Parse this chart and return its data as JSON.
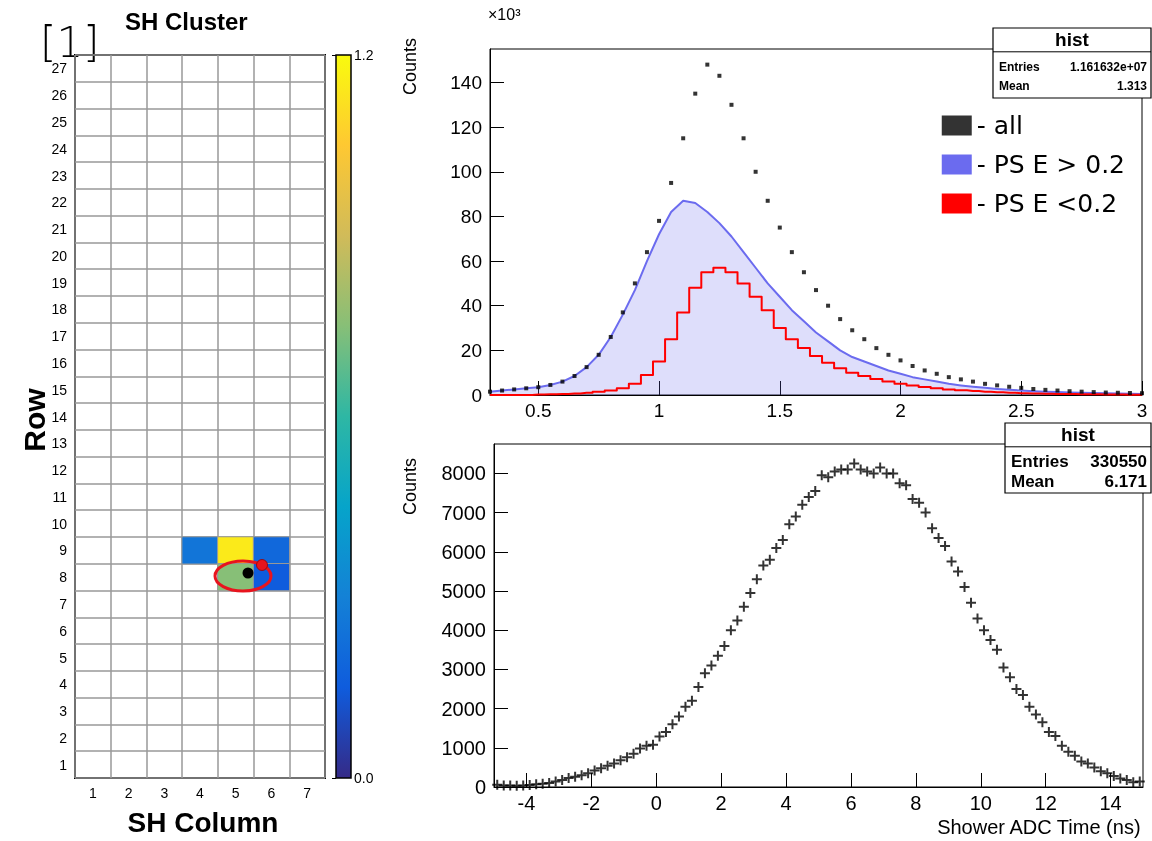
{
  "chart_data": [
    {
      "type": "heatmap",
      "title": "SH Cluster",
      "xlabel": "SH Column",
      "ylabel": "Row",
      "categories": [
        "1",
        "2",
        "3",
        "4",
        "5",
        "6",
        "7"
      ],
      "y_categories": [
        "27",
        "26",
        "25",
        "24",
        "23",
        "22",
        "21",
        "20",
        "19",
        "18",
        "17",
        "16",
        "15",
        "14",
        "13",
        "12",
        "11",
        "10",
        "9",
        "8",
        "7",
        "6",
        "5",
        "4",
        "3",
        "2",
        "1"
      ],
      "cells": [
        [
          null,
          null,
          null,
          null,
          null,
          null,
          null
        ],
        [
          null,
          null,
          null,
          null,
          null,
          null,
          null
        ],
        [
          null,
          null,
          null,
          null,
          null,
          null,
          null
        ],
        [
          null,
          null,
          null,
          null,
          null,
          null,
          null
        ],
        [
          null,
          null,
          null,
          null,
          null,
          null,
          null
        ],
        [
          null,
          null,
          null,
          null,
          null,
          null,
          null
        ],
        [
          null,
          null,
          null,
          null,
          null,
          null,
          null
        ],
        [
          null,
          null,
          null,
          null,
          null,
          null,
          null
        ],
        [
          null,
          null,
          null,
          null,
          null,
          null,
          null
        ],
        [
          null,
          null,
          null,
          null,
          null,
          null,
          null
        ],
        [
          null,
          null,
          null,
          null,
          null,
          null,
          null
        ],
        [
          null,
          null,
          null,
          null,
          null,
          null,
          null
        ],
        [
          null,
          null,
          null,
          null,
          null,
          null,
          null
        ],
        [
          null,
          null,
          null,
          null,
          null,
          null,
          null
        ],
        [
          null,
          null,
          null,
          null,
          null,
          null,
          null
        ],
        [
          null,
          null,
          null,
          null,
          null,
          null,
          null
        ],
        [
          null,
          null,
          null,
          null,
          null,
          null,
          null
        ],
        [
          null,
          null,
          null,
          null,
          null,
          null,
          null
        ],
        [
          null,
          null,
          null,
          0.25,
          1.15,
          0.2,
          null
        ],
        [
          null,
          null,
          null,
          null,
          0.75,
          0.15,
          null
        ],
        [
          null,
          null,
          null,
          null,
          null,
          null,
          null
        ],
        [
          null,
          null,
          null,
          null,
          null,
          null,
          null
        ],
        [
          null,
          null,
          null,
          null,
          null,
          null,
          null
        ],
        [
          null,
          null,
          null,
          null,
          null,
          null,
          null
        ],
        [
          null,
          null,
          null,
          null,
          null,
          null,
          null
        ],
        [
          null,
          null,
          null,
          null,
          null,
          null,
          null
        ],
        [
          null,
          null,
          null,
          null,
          null,
          null,
          null
        ]
      ],
      "clim": [
        0,
        1.2
      ],
      "cticks": [
        {
          "value": 0,
          "label": "0.0"
        },
        {
          "value": 1.2,
          "label": "1.2"
        }
      ],
      "grid": true,
      "annotations": [
        "[1]"
      ]
    },
    {
      "type": "step",
      "ylabel": "Counts",
      "legend": "top right",
      "xlim": [
        0.3,
        3
      ],
      "xticks": [
        0.5,
        1,
        1.5,
        2,
        2.5,
        3
      ],
      "ylim": [
        0,
        155
      ],
      "yticks": [
        0,
        20,
        40,
        60,
        80,
        100,
        120,
        140
      ],
      "annotations": [
        "×10³",
        "hist",
        "Entries",
        "1.161632e+07",
        "Mean",
        "1.313"
      ],
      "x": [
        0.3,
        0.35,
        0.4,
        0.45,
        0.5,
        0.55,
        0.6,
        0.65,
        0.7,
        0.75,
        0.8,
        0.85,
        0.9,
        0.95,
        1.0,
        1.05,
        1.1,
        1.15,
        1.2,
        1.25,
        1.3,
        1.35,
        1.4,
        1.45,
        1.5,
        1.55,
        1.6,
        1.65,
        1.7,
        1.75,
        1.8,
        1.85,
        1.9,
        1.95,
        2.0,
        2.05,
        2.1,
        2.15,
        2.2,
        2.25,
        2.3,
        2.35,
        2.4,
        2.45,
        2.5,
        2.55,
        2.6,
        2.65,
        2.7,
        2.75,
        2.8,
        2.85,
        2.9,
        2.95,
        3.0
      ],
      "series": [
        {
          "name": "- all",
          "type": "scatter",
          "marker": "square",
          "color": "#000000",
          "values": [
            1.5,
            2,
            2.5,
            3,
            3.5,
            4.5,
            6,
            8.5,
            12.5,
            18,
            26,
            37,
            50,
            64,
            78,
            95,
            115,
            135,
            148,
            143,
            130,
            115,
            100,
            87,
            75,
            64,
            55,
            47,
            40,
            34,
            29,
            25,
            21,
            18,
            15.5,
            13,
            11,
            9.5,
            8,
            7,
            6,
            5,
            4.3,
            3.7,
            3.2,
            2.7,
            2.3,
            2,
            1.7,
            1.5,
            1.3,
            1.1,
            1,
            0.9,
            0.8
          ]
        },
        {
          "name": "- PS E > 0.2",
          "type": "area",
          "color": "#6b6bef",
          "values": [
            1.5,
            2,
            2.5,
            3,
            3.5,
            4.5,
            6,
            8.5,
            12.5,
            18,
            26,
            36,
            47,
            60,
            72,
            82,
            87,
            86,
            82,
            77,
            71,
            64,
            57,
            50,
            44,
            38,
            33,
            28,
            24,
            20,
            17,
            15,
            13,
            11,
            9.5,
            8,
            7,
            6,
            5,
            4.3,
            3.7,
            3.2,
            2.7,
            2.3,
            2,
            1.7,
            1.5,
            1.3,
            1.1,
            1,
            0.9,
            0.8,
            0.7,
            0.6,
            0.5
          ]
        },
        {
          "name": "- PS E <0.2",
          "color": "#ff0000",
          "values": [
            0,
            0,
            0,
            0,
            0.2,
            0.3,
            0.5,
            0.7,
            1,
            1.5,
            2,
            3,
            5,
            9,
            15,
            25,
            37,
            48,
            55,
            57,
            55,
            50,
            44,
            38,
            30,
            25,
            21,
            17.5,
            14.5,
            12,
            10,
            8.5,
            7.2,
            6,
            5,
            4.3,
            3.6,
            3,
            2.5,
            2.1,
            1.8,
            1.5,
            1.2,
            1,
            0.8,
            0.7,
            0.6,
            0.5,
            0.4,
            0.3,
            0.3,
            0.2,
            0.2,
            0.1,
            0.1
          ]
        }
      ]
    },
    {
      "type": "scatter",
      "xlabel": "Shower ADC Time (ns)",
      "ylabel": "Counts",
      "marker": "cross",
      "color": "#000000",
      "xlim": [
        -5,
        15
      ],
      "xticks": [
        -4,
        -2,
        0,
        2,
        4,
        6,
        8,
        10,
        12,
        14
      ],
      "ylim": [
        0,
        8750
      ],
      "yticks": [
        0,
        1000,
        2000,
        3000,
        4000,
        5000,
        6000,
        7000,
        8000
      ],
      "annotations": [
        "hist",
        "Entries",
        "330550",
        "Mean",
        "6.171"
      ],
      "x": [
        -4.9,
        -4.7,
        -4.5,
        -4.3,
        -4.1,
        -3.9,
        -3.7,
        -3.5,
        -3.3,
        -3.1,
        -2.9,
        -2.7,
        -2.5,
        -2.3,
        -2.1,
        -1.9,
        -1.7,
        -1.5,
        -1.3,
        -1.1,
        -0.9,
        -0.7,
        -0.5,
        -0.3,
        -0.1,
        0.1,
        0.3,
        0.5,
        0.7,
        0.9,
        1.1,
        1.3,
        1.5,
        1.7,
        1.9,
        2.1,
        2.3,
        2.5,
        2.7,
        2.9,
        3.1,
        3.3,
        3.5,
        3.7,
        3.9,
        4.1,
        4.3,
        4.5,
        4.7,
        4.9,
        5.1,
        5.3,
        5.5,
        5.7,
        5.9,
        6.1,
        6.3,
        6.5,
        6.7,
        6.9,
        7.1,
        7.3,
        7.5,
        7.7,
        7.9,
        8.1,
        8.3,
        8.5,
        8.7,
        8.9,
        9.1,
        9.3,
        9.5,
        9.7,
        9.9,
        10.1,
        10.3,
        10.5,
        10.7,
        10.9,
        11.1,
        11.3,
        11.5,
        11.7,
        11.9,
        12.1,
        12.3,
        12.5,
        12.7,
        12.9,
        13.1,
        13.3,
        13.5,
        13.7,
        13.9,
        14.1,
        14.3,
        14.5,
        14.7,
        14.9
      ],
      "values": [
        60,
        40,
        40,
        30,
        40,
        50,
        70,
        80,
        100,
        140,
        180,
        230,
        260,
        300,
        350,
        420,
        480,
        540,
        600,
        680,
        760,
        850,
        980,
        1050,
        1080,
        1290,
        1400,
        1600,
        1800,
        2050,
        2200,
        2550,
        2900,
        3100,
        3350,
        3600,
        4000,
        4250,
        4600,
        4950,
        5300,
        5650,
        5800,
        6100,
        6300,
        6700,
        6900,
        7200,
        7400,
        7550,
        7950,
        7900,
        8050,
        8100,
        8100,
        8250,
        8100,
        8050,
        8000,
        8150,
        8000,
        8000,
        7750,
        7700,
        7350,
        7250,
        7000,
        6600,
        6350,
        6150,
        5750,
        5500,
        5100,
        4700,
        4300,
        4000,
        3750,
        3500,
        3050,
        2800,
        2500,
        2350,
        2050,
        1850,
        1650,
        1400,
        1300,
        1050,
        900,
        800,
        650,
        600,
        500,
        400,
        350,
        280,
        220,
        180,
        120,
        140
      ]
    }
  ]
}
